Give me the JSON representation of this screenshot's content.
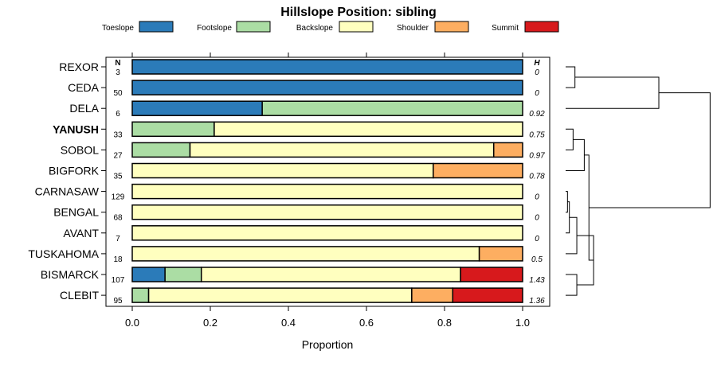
{
  "chart_data": {
    "type": "stacked-bar",
    "title": "Hillslope Position: sibling",
    "xlabel": "Proportion",
    "xlim": [
      0,
      1
    ],
    "xticks": [
      "0.0",
      "0.2",
      "0.4",
      "0.6",
      "0.8",
      "1.0"
    ],
    "n_header": "N",
    "h_header": "H",
    "categories": [
      {
        "name": "Toeslope",
        "color": "#2B7BB9"
      },
      {
        "name": "Footslope",
        "color": "#ABDDA4"
      },
      {
        "name": "Backslope",
        "color": "#FFFFBF"
      },
      {
        "name": "Shoulder",
        "color": "#FDAE61"
      },
      {
        "name": "Summit",
        "color": "#D7191C"
      }
    ],
    "rows": [
      {
        "name": "REXOR",
        "n": "3",
        "h": "0",
        "bold": false,
        "values": [
          1.0,
          0,
          0,
          0,
          0
        ]
      },
      {
        "name": "CEDA",
        "n": "50",
        "h": "0",
        "bold": false,
        "values": [
          1.0,
          0,
          0,
          0,
          0
        ]
      },
      {
        "name": "DELA",
        "n": "6",
        "h": "0.92",
        "bold": false,
        "values": [
          0.333,
          0.667,
          0,
          0,
          0
        ]
      },
      {
        "name": "YANUSH",
        "n": "33",
        "h": "0.75",
        "bold": true,
        "values": [
          0,
          0.21,
          0.79,
          0,
          0
        ]
      },
      {
        "name": "SOBOL",
        "n": "27",
        "h": "0.97",
        "bold": false,
        "values": [
          0,
          0.148,
          0.778,
          0.074,
          0
        ]
      },
      {
        "name": "BIGFORK",
        "n": "35",
        "h": "0.78",
        "bold": false,
        "values": [
          0,
          0,
          0.771,
          0.229,
          0
        ]
      },
      {
        "name": "CARNASAW",
        "n": "129",
        "h": "0",
        "bold": false,
        "values": [
          0,
          0,
          1.0,
          0,
          0
        ]
      },
      {
        "name": "BENGAL",
        "n": "68",
        "h": "0",
        "bold": false,
        "values": [
          0,
          0,
          1.0,
          0,
          0
        ]
      },
      {
        "name": "AVANT",
        "n": "7",
        "h": "0",
        "bold": false,
        "values": [
          0,
          0,
          1.0,
          0,
          0
        ]
      },
      {
        "name": "TUSKAHOMA",
        "n": "18",
        "h": "0.5",
        "bold": false,
        "values": [
          0,
          0,
          0.889,
          0.111,
          0
        ]
      },
      {
        "name": "BISMARCK",
        "n": "107",
        "h": "1.43",
        "bold": false,
        "values": [
          0.084,
          0.093,
          0.664,
          0,
          0.159
        ]
      },
      {
        "name": "CLEBIT",
        "n": "95",
        "h": "1.36",
        "bold": false,
        "values": [
          0,
          0.042,
          0.674,
          0.105,
          0.179
        ]
      }
    ],
    "dendrogram": {
      "leaf_order": [
        "REXOR",
        "CEDA",
        "DELA",
        "YANUSH",
        "SOBOL",
        "BIGFORK",
        "CARNASAW",
        "BENGAL",
        "AVANT",
        "TUSKAHOMA",
        "BISMARCK",
        "CLEBIT"
      ],
      "merges": [
        {
          "a": "L0",
          "b": "L1",
          "height": 0.1
        },
        {
          "a": "N0",
          "b": "L2",
          "height": 1.0
        },
        {
          "a": "L3",
          "b": "L4",
          "height": 0.08
        },
        {
          "a": "L6",
          "b": "L7",
          "height": 0.02
        },
        {
          "a": "N3",
          "b": "L8",
          "height": 0.04
        },
        {
          "a": "N4",
          "b": "L9",
          "height": 0.12
        },
        {
          "a": "L10",
          "b": "L11",
          "height": 0.12
        },
        {
          "a": "N2",
          "b": "L5",
          "height": 0.2
        },
        {
          "a": "N5",
          "b": "N6",
          "height": 0.3
        },
        {
          "a": "N7",
          "b": "N8",
          "height": 0.25
        },
        {
          "a": "N1",
          "b": "N9",
          "height": 1.55
        }
      ]
    }
  }
}
